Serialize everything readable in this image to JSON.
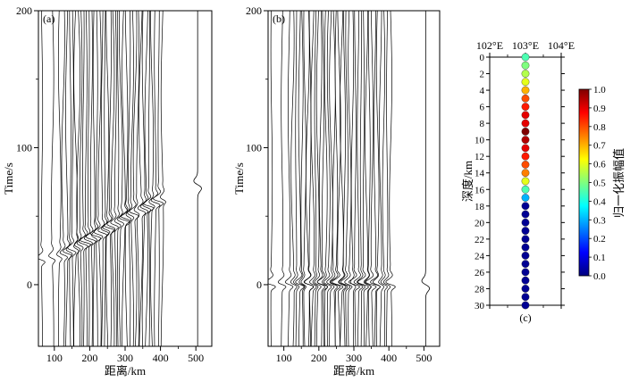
{
  "chart_data": [
    {
      "type": "line",
      "panel_label": "(a)",
      "xlabel": "距离/km",
      "ylabel": "Time/s",
      "xlim": [
        55,
        545
      ],
      "ylim": [
        -45,
        200
      ],
      "xticks": [
        100,
        200,
        300,
        400,
        500
      ],
      "yticks": [
        0,
        100,
        200
      ],
      "trace_offsets_km": [
        65,
        95,
        115,
        125,
        135,
        145,
        152,
        160,
        168,
        175,
        182,
        190,
        197,
        205,
        212,
        220,
        228,
        235,
        243,
        250,
        258,
        265,
        273,
        280,
        288,
        296,
        304,
        312,
        320,
        328,
        336,
        344,
        352,
        360,
        368,
        376,
        385,
        395,
        405
      ],
      "pulse_time_start_s": 18,
      "pulse_time_end_s": 62,
      "far_trace": {
        "offset_km": 505,
        "pulse_time_s": 73
      }
    },
    {
      "type": "line",
      "panel_label": "(b)",
      "xlabel": "距离/km",
      "ylabel": "Time/s",
      "xlim": [
        55,
        545
      ],
      "ylim": [
        -45,
        200
      ],
      "xticks": [
        100,
        200,
        300,
        400,
        500
      ],
      "yticks": [
        0,
        100,
        200
      ],
      "trace_offsets_km": [
        65,
        95,
        115,
        125,
        135,
        145,
        152,
        160,
        168,
        175,
        182,
        190,
        197,
        205,
        212,
        220,
        228,
        235,
        243,
        250,
        258,
        265,
        273,
        280,
        288,
        296,
        304,
        312,
        320,
        328,
        336,
        344,
        352,
        360,
        368,
        376,
        385,
        395,
        405
      ],
      "pulse_time_s": 0,
      "far_trace": {
        "offset_km": 505,
        "pulse_time_s": 0
      }
    },
    {
      "type": "scatter",
      "panel_label": "(c)",
      "xlabel": "",
      "ylabel": "深度/km",
      "xlim": [
        102,
        104
      ],
      "ylim": [
        30,
        0
      ],
      "xtick_labels": [
        "102°E",
        "103°E",
        "104°E"
      ],
      "yticks": [
        0,
        2,
        4,
        6,
        8,
        10,
        12,
        14,
        16,
        18,
        20,
        22,
        24,
        26,
        28,
        30
      ],
      "points": {
        "lon": 103.0,
        "depths_km": [
          0,
          1,
          2,
          3,
          4,
          5,
          6,
          7,
          8,
          9,
          10,
          11,
          12,
          13,
          14,
          15,
          16,
          17,
          18,
          19,
          20,
          21,
          22,
          23,
          24,
          25,
          26,
          27,
          28,
          29,
          30
        ],
        "amplitude": [
          0.45,
          0.5,
          0.55,
          0.6,
          0.7,
          0.8,
          0.85,
          0.9,
          0.9,
          1.0,
          0.95,
          0.9,
          0.85,
          0.8,
          0.75,
          0.6,
          0.45,
          0.3,
          0.02,
          0.02,
          0.02,
          0.02,
          0.02,
          0.02,
          0.02,
          0.02,
          0.02,
          0.02,
          0.02,
          0.02,
          0.02
        ]
      },
      "colorbar": {
        "label": "归一化振幅值",
        "range": [
          0,
          1
        ],
        "ticks": [
          "0.0",
          "0.1",
          "0.2",
          "0.3",
          "0.4",
          "0.5",
          "0.6",
          "0.7",
          "0.8",
          "0.9",
          "1.0"
        ],
        "stops": [
          "#00007f",
          "#0000ff",
          "#007fff",
          "#00ffff",
          "#7fff7f",
          "#ffff00",
          "#ff7f00",
          "#ff0000",
          "#7f0000"
        ]
      }
    }
  ]
}
